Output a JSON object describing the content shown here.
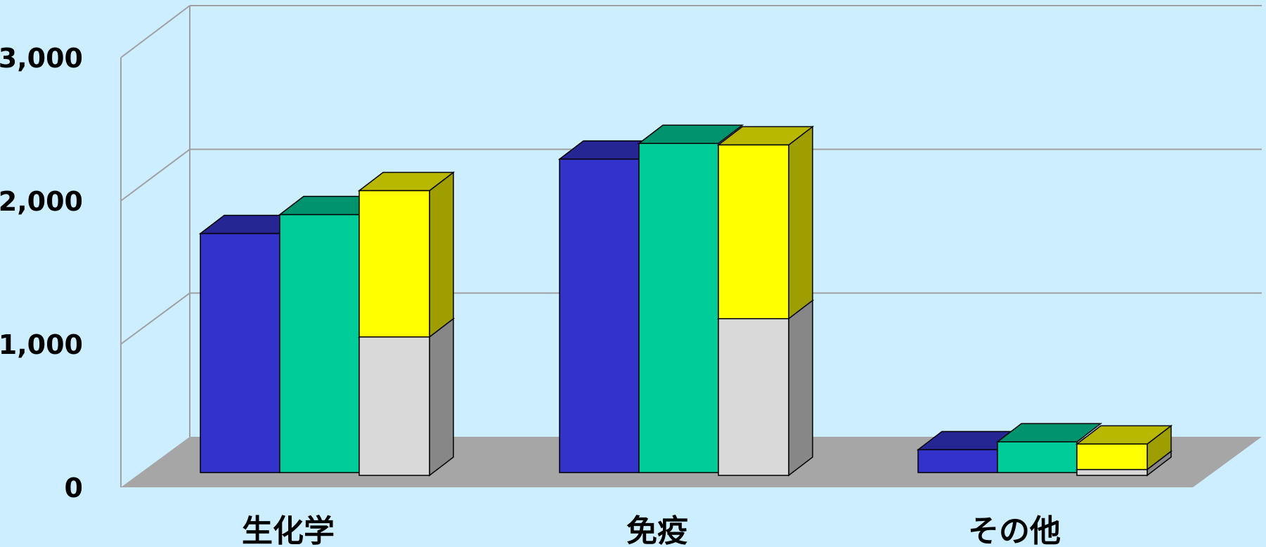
{
  "chart_data": {
    "type": "bar",
    "stacked_last_series": true,
    "categories": [
      "生化学",
      "免疫",
      "その他"
    ],
    "y_tick_labels": [
      "0",
      "1,000",
      "2,000",
      "3,000"
    ],
    "ylim": [
      0,
      3000
    ],
    "grid": true,
    "view": "3d",
    "series": [
      {
        "color": "#3333cc",
        "values": [
          1830,
          2400,
          175
        ]
      },
      {
        "color": "#00cc99",
        "values": [
          1975,
          2520,
          235
        ]
      },
      {
        "color": "#d9d9d9",
        "stack": "third",
        "values": [
          1060,
          1200,
          45
        ]
      },
      {
        "color": "#ffff00",
        "stack": "third",
        "values": [
          1120,
          1330,
          195
        ]
      }
    ],
    "colors": {
      "background": "#cdeeff",
      "floor": "#a6a6a6",
      "gridline": "#a0a0a0"
    }
  }
}
